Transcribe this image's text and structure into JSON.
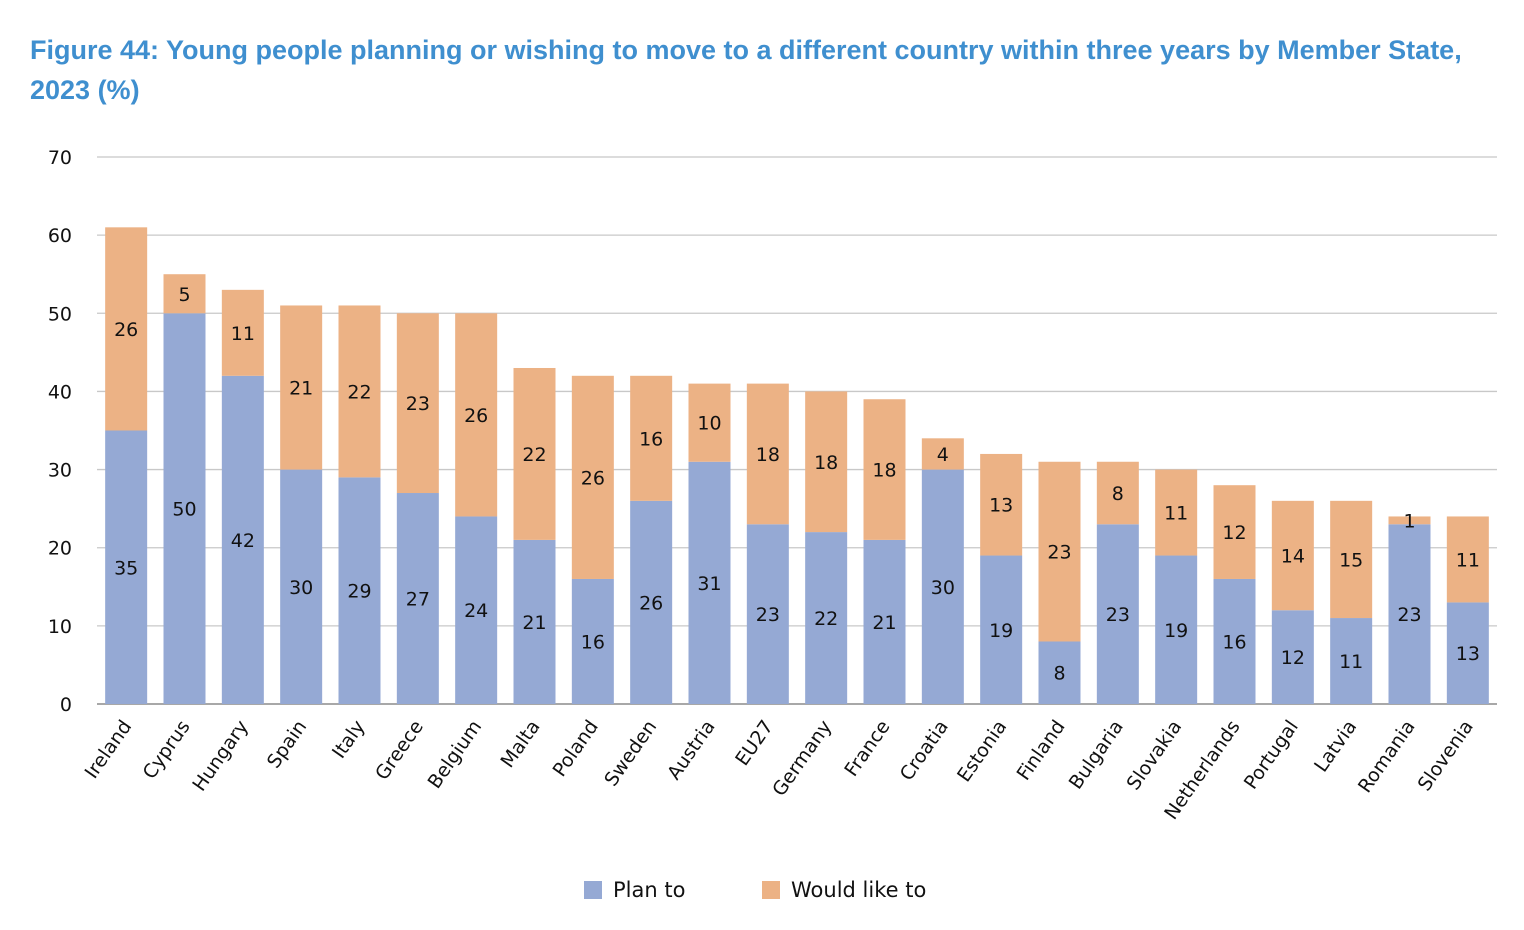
{
  "chart_data": {
    "type": "bar",
    "stacked": true,
    "title": "Figure 44: Young people planning or wishing to move to a different country within three years by Member State, 2023 (%)",
    "xlabel": "",
    "ylabel": "",
    "ylim": [
      0,
      70
    ],
    "yticks": [
      0,
      10,
      20,
      30,
      40,
      50,
      60,
      70
    ],
    "grid": true,
    "legend_position": "bottom-center",
    "categories": [
      "Ireland",
      "Cyprus",
      "Hungary",
      "Spain",
      "Italy",
      "Greece",
      "Belgium",
      "Malta",
      "Poland",
      "Sweden",
      "Austria",
      "EU27",
      "Germany",
      "France",
      "Croatia",
      "Estonia",
      "Finland",
      "Bulgaria",
      "Slovakia",
      "Netherlands",
      "Portugal",
      "Latvia",
      "Romania",
      "Slovenia"
    ],
    "series": [
      {
        "name": "Plan to",
        "color": "#95a9d4",
        "values": [
          35,
          50,
          42,
          30,
          29,
          27,
          24,
          21,
          16,
          26,
          31,
          23,
          22,
          21,
          30,
          19,
          8,
          23,
          19,
          16,
          12,
          11,
          23,
          13
        ]
      },
      {
        "name": "Would like to",
        "color": "#ecb285",
        "values": [
          26,
          5,
          11,
          21,
          22,
          23,
          26,
          22,
          26,
          16,
          10,
          18,
          18,
          18,
          4,
          13,
          23,
          8,
          11,
          12,
          14,
          15,
          1,
          11
        ]
      }
    ]
  },
  "colors": {
    "title": "#3f8fcf",
    "grid": "#c8c8c8",
    "axis": "#8c8c8c"
  }
}
